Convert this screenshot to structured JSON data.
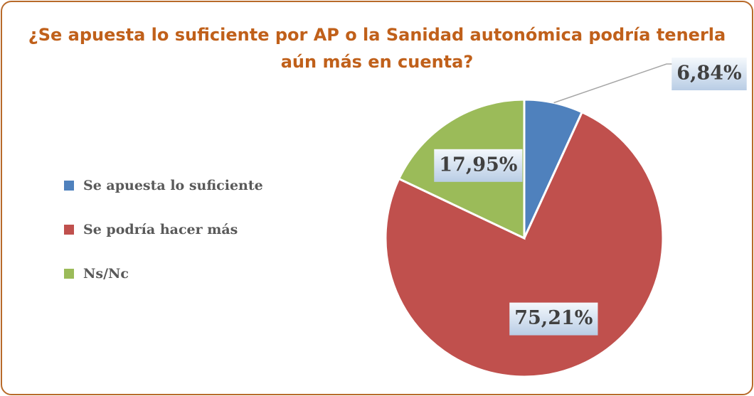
{
  "chart_data": {
    "type": "pie",
    "title": [
      "¿Se apuesta lo suficiente por AP o la Sanidad autonómica podría tenerla",
      "aún más en cuenta?"
    ],
    "categories": [
      "Se apuesta lo suficiente",
      "Se podría hacer más",
      "Ns/Nc"
    ],
    "values": [
      6.84,
      75.21,
      17.95
    ],
    "value_labels": [
      "6,84%",
      "75,21%",
      "17,95%"
    ],
    "colors": [
      "#4f81bd",
      "#c0504d",
      "#9bbb59"
    ],
    "legend": "left"
  }
}
